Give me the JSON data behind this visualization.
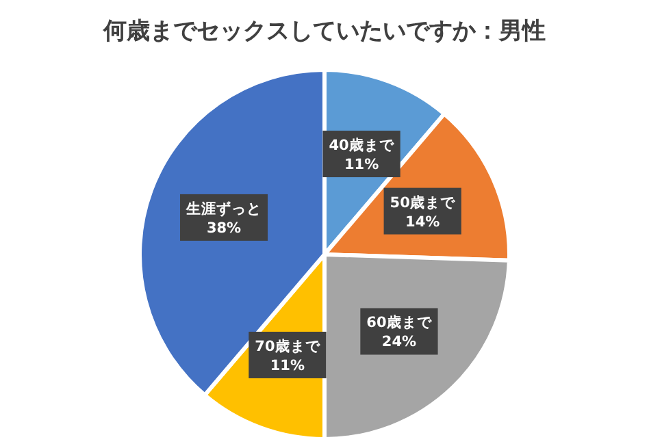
{
  "chart_data": {
    "type": "pie",
    "title": "何歳までセックスしていたいですか：男性",
    "categories": [
      "40歳まで",
      "50歳まで",
      "60歳まで",
      "70歳まで",
      "生涯ずっと"
    ],
    "values": [
      11,
      14,
      24,
      11,
      38
    ],
    "value_labels": [
      "11%",
      "14%",
      "24%",
      "11%",
      "38%"
    ],
    "colors": [
      "#5b9bd5",
      "#ed7d31",
      "#a5a5a5",
      "#ffc000",
      "#4472c4"
    ]
  }
}
